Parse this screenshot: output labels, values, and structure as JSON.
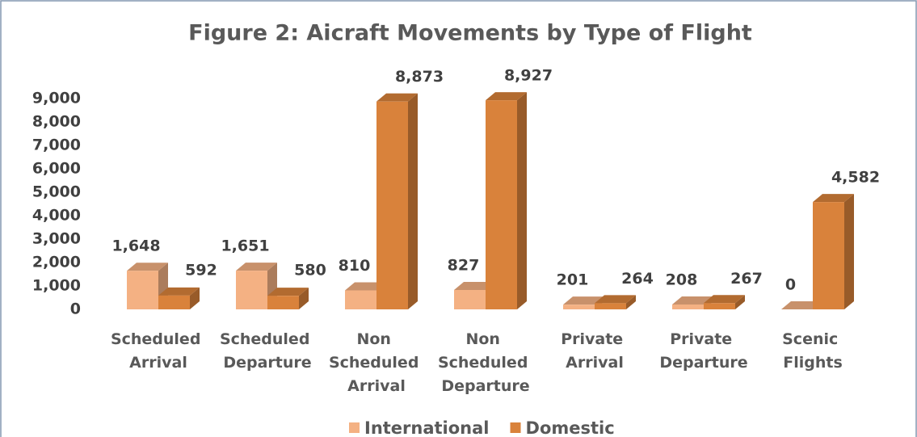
{
  "chart_data": {
    "type": "bar3d",
    "title": "Figure 2: Aicraft Movements by Type of Flight",
    "categories": [
      "Scheduled Arrival",
      "Scheduled Departure",
      "Non Scheduled Arrival",
      "Non Scheduled Departure",
      "Private Arrival",
      "Private Departure",
      "Scenic Flights"
    ],
    "series": [
      {
        "name": "International",
        "color": "#f4b183",
        "values": [
          1648,
          1651,
          810,
          827,
          201,
          208,
          0
        ],
        "value_labels": [
          "1,648",
          "1,651",
          "810",
          "827",
          "201",
          "208",
          "0"
        ]
      },
      {
        "name": "Domestic",
        "color": "#d9823b",
        "values": [
          592,
          580,
          8873,
          8927,
          264,
          267,
          4582
        ],
        "value_labels": [
          "592",
          "580",
          "8,873",
          "8,927",
          "264",
          "267",
          "4,582"
        ]
      }
    ],
    "ylim": [
      0,
      9000
    ],
    "yticks": [
      0,
      {
        "value": 1000,
        "label": "1,000"
      },
      {
        "value": 2000,
        "label": "2,000"
      },
      {
        "value": 3000,
        "label": "3,000"
      },
      {
        "value": 4000,
        "label": "4,000"
      },
      {
        "value": 5000,
        "label": "5,000"
      },
      {
        "value": 6000,
        "label": "6,000"
      },
      {
        "value": 7000,
        "label": "7,000"
      },
      {
        "value": 8000,
        "label": "8,000"
      },
      {
        "value": 9000,
        "label": "9,000"
      }
    ],
    "legend": "bottom"
  }
}
